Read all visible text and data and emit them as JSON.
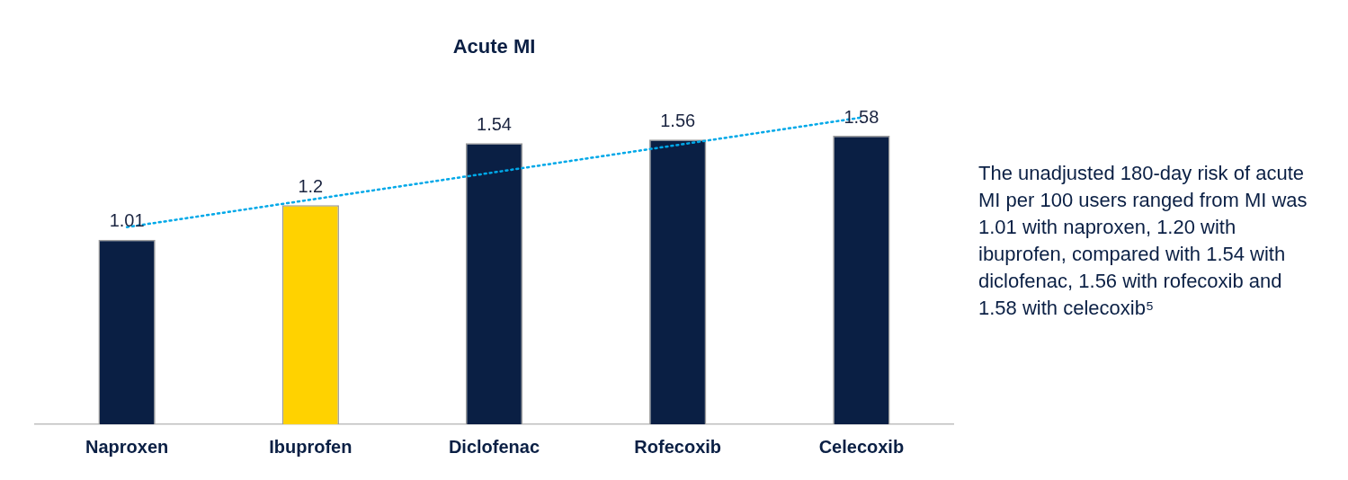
{
  "chart_data": {
    "type": "bar",
    "title": "Acute MI",
    "categories": [
      "Naproxen",
      "Ibuprofen",
      "Diclofenac",
      "Rofecoxib",
      "Celecoxib"
    ],
    "series": [
      {
        "values": [
          1.01,
          1.2,
          1.54,
          1.56,
          1.58
        ],
        "value_labels": [
          "1.01",
          "1.2",
          "1.54",
          "1.56",
          "1.58"
        ],
        "colors": [
          "#0a1f44",
          "#ffd200",
          "#0a1f44",
          "#0a1f44",
          "#0a1f44"
        ]
      },
      {
        "type": "line",
        "x": [
          "Naproxen",
          "Celecoxib"
        ],
        "values": [
          1.08,
          1.68
        ],
        "color": "#00a8e8",
        "line_style": "dotted",
        "marker": "none"
      }
    ],
    "tick_labels": "x",
    "grid": false,
    "legend": false,
    "annotations": [
      "The unadjusted 180-day risk of acute MI per 100 users ranged from MI was 1.01 with naproxen, 1.20 with ibuprofen, compared with 1.54 with diclofenac, 1.56 with rofecoxib and 1.58 with celecoxib⁵"
    ]
  }
}
